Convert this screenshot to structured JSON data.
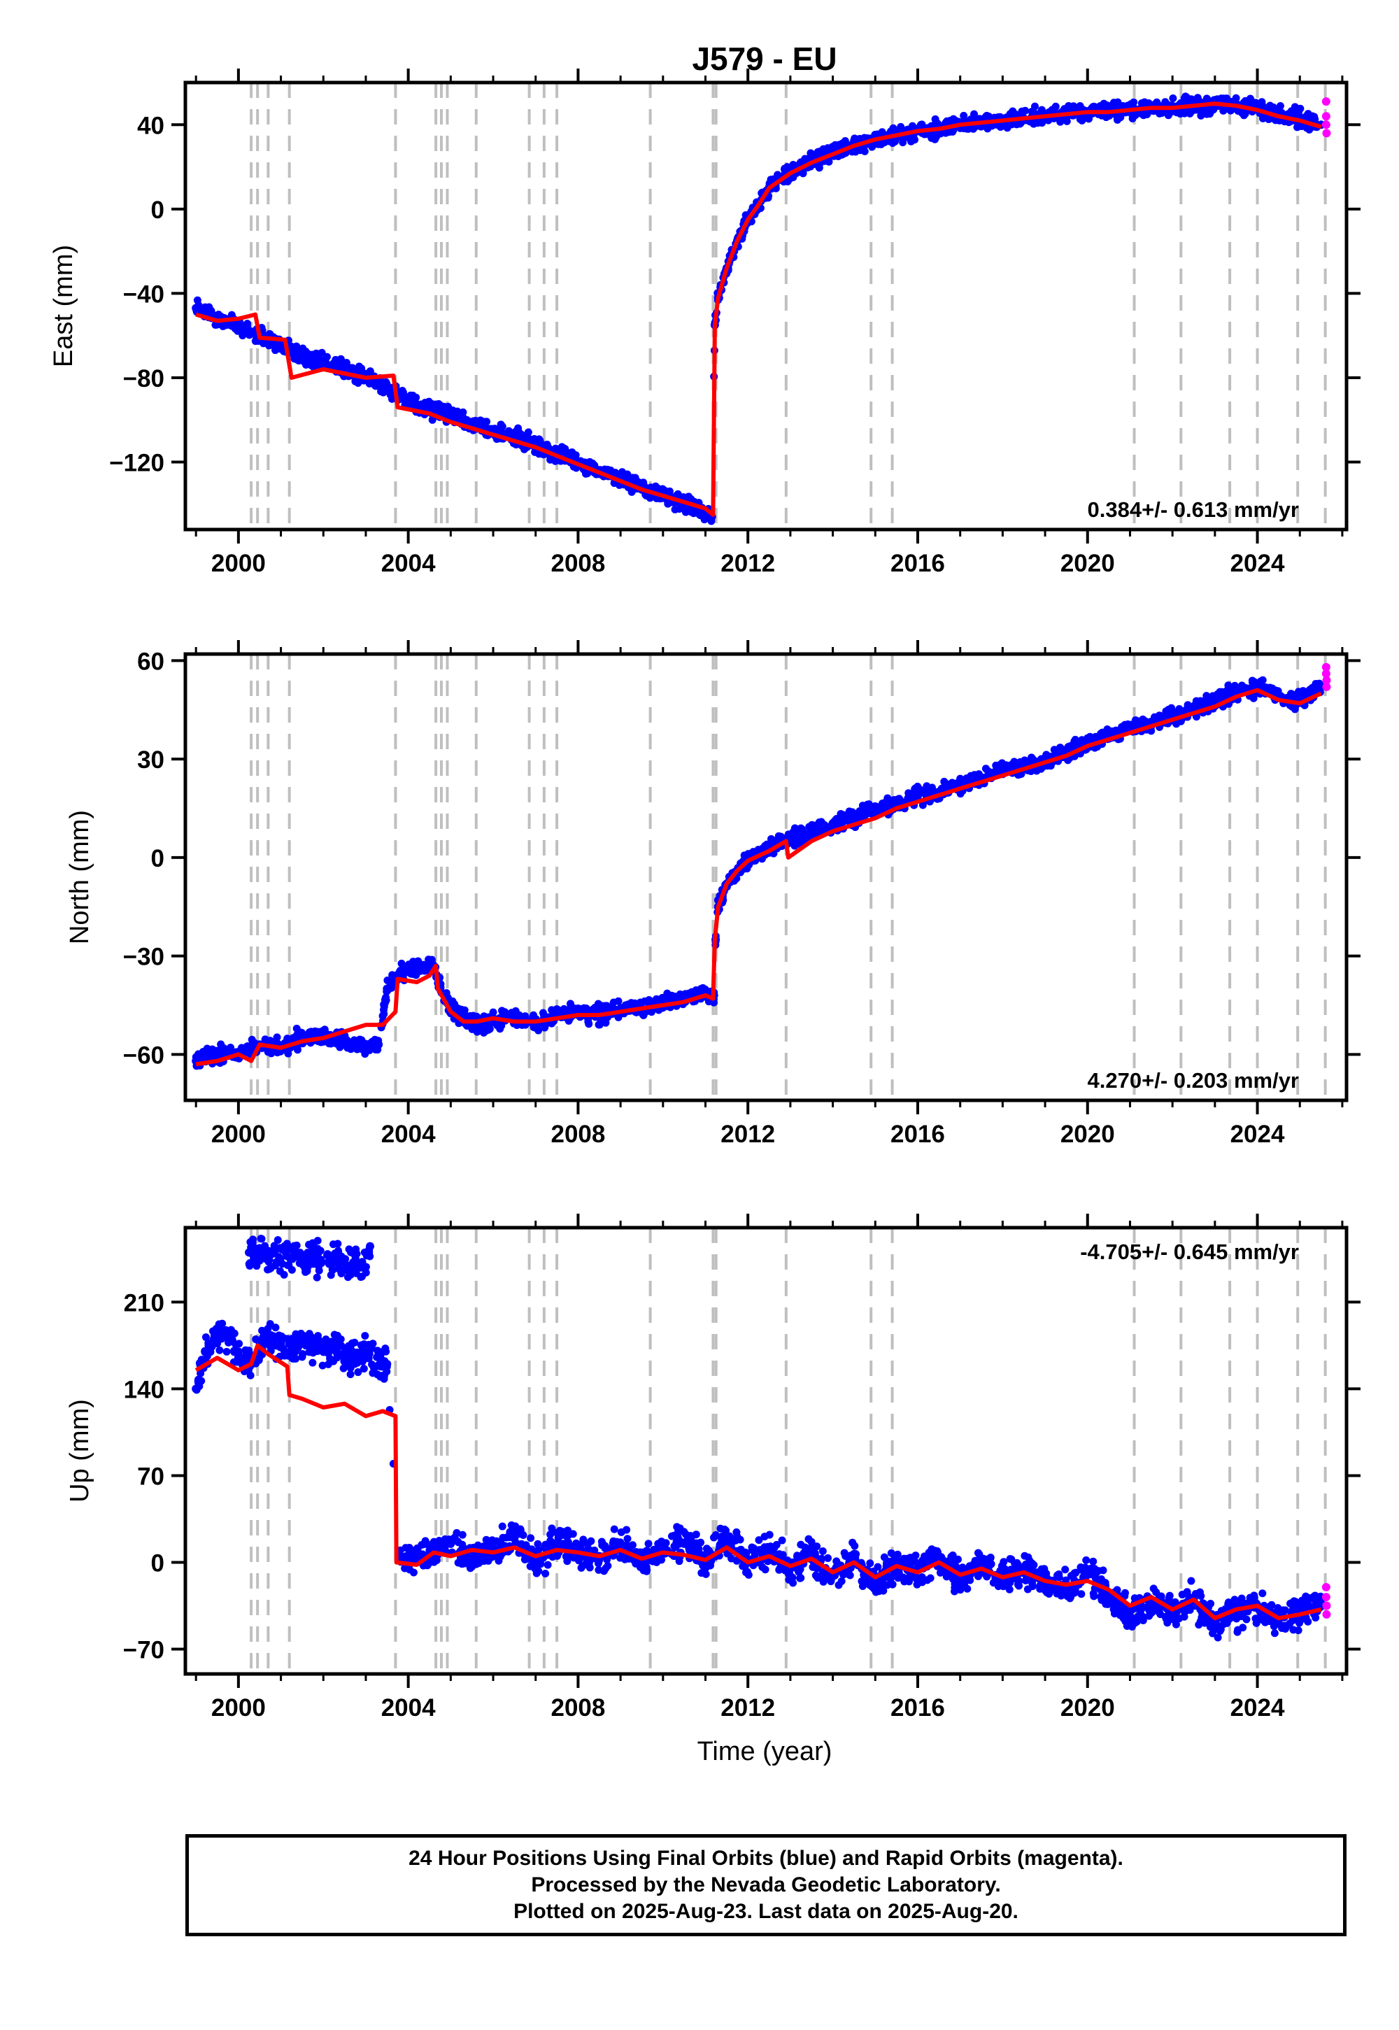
{
  "chart_data": {
    "type": "scatter",
    "title": "J579 - EU",
    "xlabel": "Time (year)",
    "xlim": [
      1998.75,
      2026.1
    ],
    "xticks": [
      2000,
      2004,
      2008,
      2012,
      2016,
      2020,
      2024
    ],
    "xtick_labels": [
      "2000",
      "2004",
      "2008",
      "2012",
      "2016",
      "2020",
      "2024"
    ],
    "grid": false,
    "event_lines": [
      2000.3,
      2000.45,
      2000.7,
      2001.2,
      2003.7,
      2004.65,
      2004.78,
      2004.92,
      2005.6,
      2006.85,
      2007.2,
      2007.5,
      2009.7,
      2011.18,
      2011.25,
      2012.9,
      2014.9,
      2015.4,
      2021.1,
      2022.2,
      2023.35,
      2024.0,
      2024.95,
      2025.6
    ],
    "panels": [
      {
        "ylabel": "East (mm)",
        "ylim": [
          -152,
          60
        ],
        "yticks": [
          -120,
          -80,
          -40,
          0,
          40
        ],
        "ytick_labels": [
          "−120",
          "−80",
          "−40",
          "0",
          "40"
        ],
        "rate_label": "0.384+/- 0.613 mm/yr",
        "rate_position": "bottom-right",
        "series": [
          {
            "color": "#0000ff",
            "style": "dots",
            "x": [
              1999.0,
              1999.5,
              2000.0,
              2000.5,
              2001.0,
              2001.5,
              2002.0,
              2002.5,
              2003.0,
              2003.5,
              2003.9,
              2004.5,
              2005.0,
              2005.5,
              2006.0,
              2006.5,
              2007.0,
              2007.5,
              2008.0,
              2008.5,
              2009.0,
              2009.5,
              2010.0,
              2010.5,
              2011.0,
              2011.15,
              2011.22,
              2011.3,
              2011.5,
              2011.75,
              2012.0,
              2012.25,
              2012.5,
              2013.0,
              2013.5,
              2014.0,
              2014.5,
              2015.0,
              2015.5,
              2016.0,
              2016.5,
              2017.0,
              2017.5,
              2018.0,
              2018.5,
              2019.0,
              2019.5,
              2020.0,
              2020.5,
              2021.0,
              2021.5,
              2022.0,
              2022.5,
              2023.0,
              2023.5,
              2024.0,
              2024.5,
              2025.0,
              2025.5
            ],
            "y": [
              -47,
              -52,
              -55,
              -60,
              -63,
              -70,
              -72,
              -76,
              -80,
              -84,
              -90,
              -95,
              -98,
              -102,
              -106,
              -108,
              -112,
              -116,
              -120,
              -124,
              -128,
              -133,
              -136,
              -140,
              -144,
              -146,
              -55,
              -42,
              -28,
              -15,
              -5,
              2,
              10,
              18,
              23,
              27,
              30,
              33,
              35,
              37,
              38,
              40,
              41,
              42,
              43,
              44,
              45,
              46,
              47,
              47,
              48,
              48,
              49,
              50,
              49,
              48,
              45,
              43,
              40
            ]
          },
          {
            "color": "#ff0000",
            "style": "line",
            "x": [
              1999.0,
              1999.5,
              2000.0,
              2000.4,
              2000.5,
              2001.1,
              2001.25,
              2002.0,
              2002.5,
              2003.0,
              2003.65,
              2003.75,
              2004.5,
              2005.0,
              2005.5,
              2006.0,
              2006.5,
              2007.0,
              2007.5,
              2008.0,
              2008.5,
              2009.0,
              2009.5,
              2010.0,
              2010.5,
              2011.0,
              2011.18,
              2011.22,
              2011.3,
              2011.5,
              2011.75,
              2012.0,
              2012.25,
              2012.5,
              2013.0,
              2013.5,
              2014.0,
              2014.5,
              2015.0,
              2015.5,
              2016.0,
              2016.5,
              2017.0,
              2017.5,
              2018.0,
              2018.5,
              2019.0,
              2019.5,
              2020.0,
              2020.5,
              2021.0,
              2021.5,
              2022.0,
              2022.5,
              2023.0,
              2023.5,
              2024.0,
              2024.5,
              2025.0,
              2025.5
            ],
            "y": [
              -50,
              -53,
              -52,
              -50,
              -61,
              -62,
              -80,
              -76,
              -78,
              -80,
              -79,
              -94,
              -97,
              -101,
              -104,
              -107,
              -110,
              -113,
              -117,
              -121,
              -125,
              -129,
              -133,
              -136,
              -139,
              -142,
              -145,
              -55,
              -42,
              -28,
              -15,
              -5,
              2,
              10,
              17,
              22,
              26,
              30,
              33,
              35,
              37,
              38,
              40,
              41,
              42,
              43,
              44,
              45,
              46,
              46,
              47,
              48,
              48,
              49,
              50,
              49,
              47,
              44,
              42,
              39
            ]
          },
          {
            "color": "#ff00ff",
            "style": "dots",
            "x": [
              2025.62,
              2025.62,
              2025.62,
              2025.63
            ],
            "y": [
              51,
              44,
              40,
              36
            ]
          }
        ]
      },
      {
        "ylabel": "North (mm)",
        "ylim": [
          -74,
          62
        ],
        "yticks": [
          -60,
          -30,
          0,
          30,
          60
        ],
        "ytick_labels": [
          "−60",
          "−30",
          "0",
          "30",
          "60"
        ],
        "rate_label": "4.270+/- 0.203 mm/yr",
        "rate_position": "bottom-right",
        "series": [
          {
            "color": "#0000ff",
            "style": "dots",
            "x": [
              1999.0,
              1999.5,
              2000.0,
              2000.5,
              2001.0,
              2001.5,
              2002.0,
              2002.5,
              2003.0,
              2003.3,
              2003.5,
              2003.8,
              2004.2,
              2004.6,
              2004.9,
              2005.2,
              2005.6,
              2006.0,
              2006.5,
              2007.0,
              2007.5,
              2008.0,
              2008.5,
              2009.0,
              2009.5,
              2010.0,
              2010.5,
              2011.0,
              2011.2,
              2011.24,
              2011.3,
              2011.5,
              2011.75,
              2012.0,
              2012.5,
              2013.0,
              2013.5,
              2014.0,
              2014.5,
              2015.0,
              2015.5,
              2016.0,
              2016.5,
              2017.0,
              2017.5,
              2018.0,
              2018.5,
              2019.0,
              2019.5,
              2020.0,
              2020.5,
              2021.0,
              2021.5,
              2022.0,
              2022.5,
              2023.0,
              2023.5,
              2024.0,
              2024.5,
              2025.0,
              2025.5
            ],
            "y": [
              -62,
              -60,
              -60,
              -57,
              -58,
              -55,
              -55,
              -56,
              -58,
              -57,
              -40,
              -35,
              -33,
              -33,
              -44,
              -48,
              -51,
              -50,
              -49,
              -51,
              -48,
              -47,
              -48,
              -46,
              -46,
              -44,
              -43,
              -41,
              -42,
              -25,
              -15,
              -8,
              -4,
              -1,
              3,
              6,
              8,
              10,
              12,
              15,
              16,
              19,
              20,
              22,
              24,
              27,
              28,
              30,
              32,
              35,
              37,
              39,
              41,
              43,
              45,
              48,
              50,
              52,
              49,
              48,
              52
            ]
          },
          {
            "color": "#ff0000",
            "style": "line",
            "x": [
              1999.0,
              1999.5,
              2000.0,
              2000.3,
              2000.5,
              2001.0,
              2001.5,
              2002.0,
              2002.5,
              2003.0,
              2003.4,
              2003.7,
              2003.75,
              2004.2,
              2004.5,
              2004.65,
              2004.7,
              2005.0,
              2005.3,
              2005.6,
              2006.0,
              2006.5,
              2007.0,
              2007.5,
              2008.0,
              2008.5,
              2009.0,
              2009.5,
              2010.0,
              2010.5,
              2011.0,
              2011.18,
              2011.22,
              2011.3,
              2011.5,
              2011.75,
              2012.0,
              2012.5,
              2012.9,
              2012.95,
              2013.5,
              2014.0,
              2014.5,
              2015.0,
              2015.5,
              2016.0,
              2016.5,
              2017.0,
              2017.5,
              2018.0,
              2018.5,
              2019.0,
              2019.5,
              2020.0,
              2020.5,
              2021.0,
              2021.5,
              2022.0,
              2022.5,
              2023.0,
              2023.5,
              2024.0,
              2024.5,
              2025.0,
              2025.5
            ],
            "y": [
              -63,
              -62,
              -60,
              -62,
              -57,
              -58,
              -56,
              -55,
              -53,
              -51,
              -51,
              -47,
              -37,
              -38,
              -36,
              -33,
              -40,
              -47,
              -50,
              -50,
              -49,
              -50,
              -50,
              -49,
              -48,
              -48,
              -47,
              -46,
              -45,
              -44,
              -42,
              -43,
              -25,
              -15,
              -8,
              -4,
              -1,
              2,
              5,
              0,
              5,
              8,
              10,
              12,
              15,
              17,
              19,
              21,
              23,
              25,
              27,
              29,
              31,
              34,
              36,
              38,
              40,
              42,
              44,
              46,
              49,
              51,
              48,
              47,
              50
            ]
          },
          {
            "color": "#ff00ff",
            "style": "dots",
            "x": [
              2025.62,
              2025.62,
              2025.63,
              2025.63
            ],
            "y": [
              58,
              56,
              54,
              52
            ]
          }
        ]
      },
      {
        "ylabel": "Up (mm)",
        "ylim": [
          -90,
          270
        ],
        "yticks": [
          -70,
          0,
          70,
          140,
          210
        ],
        "ytick_labels": [
          "−70",
          "0",
          "70",
          "140",
          "210"
        ],
        "rate_label": "-4.705+/- 0.645 mm/yr",
        "rate_position": "top-right",
        "series": [
          {
            "color": "#0000ff",
            "style": "dots",
            "x": [
              1999.0,
              1999.3,
              1999.6,
              2000.0,
              2000.3,
              2000.6,
              2001.0,
              2001.3,
              2001.6,
              2002.0,
              2002.3,
              2002.6,
              2003.0,
              2003.5,
              2003.8,
              2004.2,
              2004.6,
              2005.0,
              2005.5,
              2006.0,
              2006.5,
              2007.0,
              2007.5,
              2008.0,
              2008.5,
              2009.0,
              2009.5,
              2010.0,
              2010.5,
              2011.0,
              2011.5,
              2012.0,
              2012.5,
              2013.0,
              2013.5,
              2014.0,
              2014.5,
              2015.0,
              2015.5,
              2016.0,
              2016.5,
              2017.0,
              2017.5,
              2018.0,
              2018.5,
              2019.0,
              2019.5,
              2020.0,
              2020.5,
              2021.0,
              2021.5,
              2022.0,
              2022.5,
              2023.0,
              2023.5,
              2024.0,
              2024.5,
              2025.0,
              2025.5,
              2000.25,
              2002.35,
              2002.9,
              2003.1
            ],
            "y": [
              140,
              175,
              185,
              170,
              160,
              180,
              175,
              170,
              180,
              170,
              175,
              165,
              165,
              160,
              5,
              0,
              10,
              15,
              0,
              10,
              20,
              0,
              15,
              10,
              5,
              15,
              0,
              10,
              15,
              5,
              20,
              0,
              10,
              -5,
              5,
              -10,
              5,
              -20,
              0,
              -5,
              5,
              -15,
              0,
              -10,
              -5,
              -15,
              -20,
              -10,
              -25,
              -45,
              -30,
              -40,
              -30,
              -50,
              -40,
              -35,
              -45,
              -40,
              -30,
              250,
              245,
              238,
              255
            ]
          },
          {
            "color": "#ff0000",
            "style": "line",
            "x": [
              1999.0,
              1999.5,
              2000.0,
              2000.3,
              2000.45,
              2000.7,
              2001.15,
              2001.2,
              2001.5,
              2002.0,
              2002.5,
              2003.0,
              2003.4,
              2003.7,
              2003.72,
              2004.2,
              2004.6,
              2005.0,
              2005.5,
              2006.0,
              2006.5,
              2007.0,
              2007.5,
              2008.0,
              2008.5,
              2009.0,
              2009.5,
              2010.0,
              2010.5,
              2011.0,
              2011.5,
              2012.0,
              2012.5,
              2013.0,
              2013.5,
              2014.0,
              2014.5,
              2015.0,
              2015.5,
              2016.0,
              2016.5,
              2017.0,
              2017.5,
              2018.0,
              2018.5,
              2019.0,
              2019.5,
              2020.0,
              2020.5,
              2021.0,
              2021.5,
              2022.0,
              2022.5,
              2023.0,
              2023.5,
              2024.0,
              2024.5,
              2025.0,
              2025.5
            ],
            "y": [
              155,
              165,
              155,
              160,
              175,
              168,
              158,
              135,
              132,
              125,
              128,
              118,
              122,
              118,
              0,
              -2,
              8,
              5,
              10,
              8,
              12,
              5,
              10,
              8,
              5,
              10,
              3,
              8,
              6,
              2,
              12,
              0,
              5,
              -3,
              3,
              -8,
              0,
              -12,
              -3,
              -8,
              0,
              -10,
              -5,
              -12,
              -8,
              -15,
              -18,
              -15,
              -22,
              -35,
              -28,
              -38,
              -30,
              -45,
              -38,
              -35,
              -45,
              -42,
              -38
            ]
          },
          {
            "color": "#ff00ff",
            "style": "dots",
            "x": [
              2025.62,
              2025.62,
              2025.63,
              2025.63
            ],
            "y": [
              -20,
              -28,
              -35,
              -42
            ]
          }
        ]
      }
    ]
  },
  "footer": {
    "line1": "24 Hour Positions Using Final Orbits (blue) and Rapid Orbits (magenta).",
    "line2": "Processed by the Nevada Geodetic Laboratory.",
    "line3": "Plotted on 2025-Aug-23. Last data on 2025-Aug-20."
  }
}
